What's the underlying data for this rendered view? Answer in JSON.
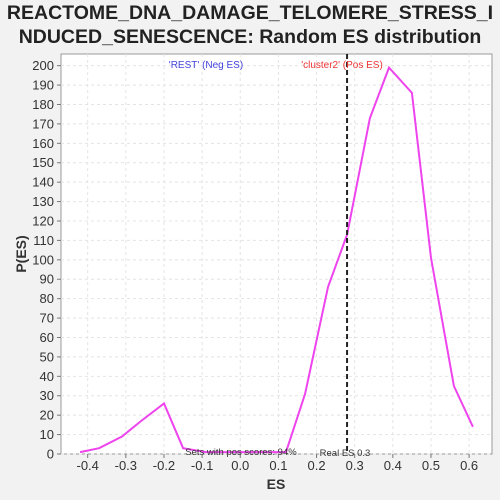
{
  "chart_data": {
    "type": "line",
    "title": [
      "REACTOME_DNA_DAMAGE_TELOMERE_STRESS_I",
      "NDUCED_SENESCENCE: Random ES distribution"
    ],
    "xlabel": "ES",
    "ylabel": "P(ES)",
    "xlim": [
      -0.47,
      0.66
    ],
    "ylim": [
      0,
      206
    ],
    "xticks": [
      -0.4,
      -0.3,
      -0.2,
      -0.1,
      0.0,
      0.1,
      0.2,
      0.3,
      0.4,
      0.5,
      0.6
    ],
    "xtick_labels": [
      "-0.4",
      "-0.3",
      "-0.2",
      "-0.1",
      "0.0",
      "0.1",
      "0.2",
      "0.3",
      "0.4",
      "0.5",
      "0.6"
    ],
    "yticks": [
      0,
      10,
      20,
      30,
      40,
      50,
      60,
      70,
      80,
      90,
      100,
      110,
      120,
      130,
      140,
      150,
      160,
      170,
      180,
      190,
      200
    ],
    "grid": true,
    "series": [
      {
        "color": "#ee44ee",
        "x": [
          -0.42,
          -0.37,
          -0.31,
          -0.26,
          -0.2,
          -0.15,
          -0.09,
          -0.04,
          0.01,
          0.07,
          0.12,
          0.17,
          0.23,
          0.28,
          0.34,
          0.39,
          0.45,
          0.5,
          0.56,
          0.61
        ],
        "y": [
          1,
          3,
          9,
          17,
          26,
          3,
          1,
          1,
          1,
          1,
          1,
          31,
          86,
          113,
          173,
          199,
          186,
          101,
          35,
          14
        ]
      }
    ],
    "real_es": 0.28,
    "annotations": {
      "neg_label": "'REST' (Neg ES)",
      "pos_label": "'cluster2' (Pos ES)",
      "pos_scores": "Sets with pos scores: 94%",
      "real_es_label": "Real ES 0.3"
    },
    "colors": {
      "neg": "#4444dd",
      "pos": "#ee3333",
      "line": "#ee44ee",
      "marker": "#222222"
    }
  }
}
